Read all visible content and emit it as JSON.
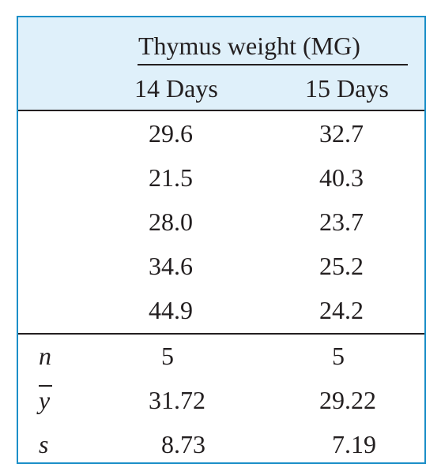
{
  "table": {
    "spanner_header": "Thymus weight (MG)",
    "columns": [
      "14 Days",
      "15 Days"
    ],
    "rows": [
      [
        "29.6",
        "32.7"
      ],
      [
        "21.5",
        "40.3"
      ],
      [
        "28.0",
        "23.7"
      ],
      [
        "34.6",
        "25.2"
      ],
      [
        "44.9",
        "24.2"
      ]
    ],
    "summary": [
      {
        "label": "n",
        "values": [
          "5",
          "5"
        ]
      },
      {
        "label": "y",
        "values": [
          "31.72",
          "29.22"
        ]
      },
      {
        "label": "s",
        "values": [
          "8.73",
          "7.19"
        ]
      }
    ]
  },
  "colors": {
    "border": "#1c8fc8",
    "header_background": "#dff0fa",
    "text": "#231f20"
  }
}
